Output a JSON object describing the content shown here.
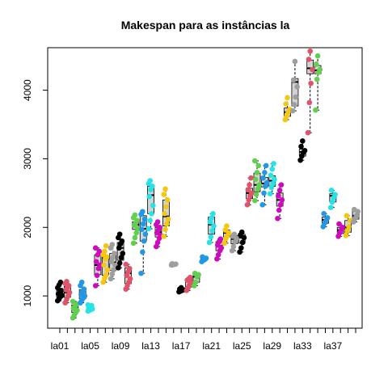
{
  "chart_data": {
    "type": "box",
    "title": "Makespan para as instâncias la",
    "xlabel": "",
    "ylabel": "",
    "ylim": [
      530,
      4620
    ],
    "y_ticks": [
      1000,
      2000,
      3000,
      4000
    ],
    "x_tick_labels": [
      "la01",
      "la05",
      "la09",
      "la13",
      "la17",
      "la21",
      "la25",
      "la29",
      "la33",
      "la37"
    ],
    "categories": [
      "la01",
      "la02",
      "la03",
      "la04",
      "la05",
      "la06",
      "la07",
      "la08",
      "la09",
      "la10",
      "la11",
      "la12",
      "la13",
      "la14",
      "la15",
      "la16",
      "la17",
      "la18",
      "la19",
      "la20",
      "la21",
      "la22",
      "la23",
      "la24",
      "la25",
      "la26",
      "la27",
      "la28",
      "la29",
      "la30",
      "la31",
      "la32",
      "la33",
      "la34",
      "la35",
      "la36",
      "la37",
      "la38",
      "la39",
      "la40"
    ],
    "palette": [
      "#000000",
      "#df536b",
      "#61d04f",
      "#2297e6",
      "#28e2e5",
      "#cd0bbc",
      "#f5c710",
      "#9e9e9e"
    ],
    "box_fill": "#d3d3d3",
    "boxes": [
      {
        "min": 930,
        "q1": 980,
        "median": 1030,
        "q3": 1080,
        "max": 1200,
        "points": [
          930,
          960,
          990,
          1010,
          1030,
          1050,
          1080,
          1120,
          1160,
          1200
        ]
      },
      {
        "min": 900,
        "q1": 980,
        "median": 1050,
        "q3": 1140,
        "max": 1210,
        "points": [
          900,
          950,
          1000,
          1050,
          1090,
          1120,
          1150,
          1180,
          1210
        ]
      },
      {
        "min": 680,
        "q1": 760,
        "median": 820,
        "q3": 870,
        "max": 920,
        "points": [
          680,
          720,
          760,
          790,
          820,
          850,
          880,
          920
        ]
      },
      {
        "min": 900,
        "q1": 960,
        "median": 1010,
        "q3": 1090,
        "max": 1200,
        "points": [
          900,
          940,
          970,
          1000,
          1020,
          1060,
          1100,
          1150,
          1200
        ]
      },
      {
        "min": 780,
        "q1": 790,
        "median": 810,
        "q3": 840,
        "max": 870,
        "points": [
          780,
          790,
          800,
          810,
          820,
          840,
          860,
          870
        ]
      },
      {
        "min": 1150,
        "q1": 1310,
        "median": 1450,
        "q3": 1600,
        "max": 1700,
        "points": [
          1150,
          1300,
          1400,
          1450,
          1500,
          1600,
          1650,
          1700
        ]
      },
      {
        "min": 1200,
        "q1": 1300,
        "median": 1560,
        "q3": 1590,
        "max": 1730,
        "points": [
          1200,
          1260,
          1300,
          1380,
          1450,
          1540,
          1570,
          1600,
          1650,
          1730
        ]
      },
      {
        "min": 1250,
        "q1": 1370,
        "median": 1490,
        "q3": 1620,
        "max": 1750,
        "points": [
          1250,
          1320,
          1380,
          1450,
          1500,
          1560,
          1620,
          1700,
          1750
        ]
      },
      {
        "min": 1410,
        "q1": 1520,
        "median": 1700,
        "q3": 1780,
        "max": 1900,
        "points": [
          1410,
          1480,
          1560,
          1620,
          1700,
          1760,
          1800,
          1850,
          1900
        ]
      },
      {
        "min": 1100,
        "q1": 1180,
        "median": 1330,
        "q3": 1410,
        "max": 1460,
        "points": [
          1100,
          1150,
          1200,
          1250,
          1300,
          1350,
          1400,
          1460
        ]
      },
      {
        "min": 1770,
        "q1": 1970,
        "median": 2040,
        "q3": 2080,
        "max": 2180,
        "points": [
          1770,
          1850,
          1920,
          1980,
          2030,
          2060,
          2100,
          2140,
          2180
        ]
      },
      {
        "min": 1330,
        "q1": 1800,
        "median": 1980,
        "q3": 2170,
        "max": 2230,
        "points": [
          1330,
          1640,
          1800,
          1900,
          1970,
          2050,
          2120,
          2190,
          2230
        ]
      },
      {
        "min": 1980,
        "q1": 2200,
        "median": 2470,
        "q3": 2600,
        "max": 2680,
        "points": [
          1980,
          2100,
          2200,
          2320,
          2450,
          2550,
          2600,
          2640,
          2680
        ]
      },
      {
        "min": 1720,
        "q1": 1860,
        "median": 1930,
        "q3": 2000,
        "max": 2080,
        "points": [
          1720,
          1780,
          1840,
          1880,
          1920,
          1960,
          2000,
          2040,
          2080
        ]
      },
      {
        "min": 1870,
        "q1": 2020,
        "median": 2160,
        "q3": 2400,
        "max": 2560,
        "points": [
          1870,
          1970,
          2050,
          2120,
          2200,
          2300,
          2400,
          2480,
          2560
        ]
      },
      {
        "min": 1450,
        "q1": 1455,
        "median": 1460,
        "q3": 1465,
        "max": 1470,
        "points": [
          1450,
          1455,
          1460,
          1465,
          1470
        ]
      },
      {
        "min": 1060,
        "q1": 1070,
        "median": 1080,
        "q3": 1100,
        "max": 1120,
        "points": [
          1060,
          1070,
          1080,
          1090,
          1100,
          1120
        ]
      },
      {
        "min": 1080,
        "q1": 1130,
        "median": 1210,
        "q3": 1250,
        "max": 1270,
        "points": [
          1080,
          1120,
          1160,
          1200,
          1230,
          1250,
          1270
        ]
      },
      {
        "min": 1150,
        "q1": 1200,
        "median": 1280,
        "q3": 1310,
        "max": 1330,
        "points": [
          1150,
          1200,
          1280,
          1310,
          1330
        ]
      },
      {
        "min": 1500,
        "q1": 1520,
        "median": 1530,
        "q3": 1550,
        "max": 1570,
        "points": [
          1500,
          1520,
          1530,
          1550,
          1570
        ]
      },
      {
        "min": 1780,
        "q1": 1900,
        "median": 2040,
        "q3": 2150,
        "max": 2200,
        "points": [
          1780,
          1860,
          1950,
          2020,
          2080,
          2140,
          2200
        ]
      },
      {
        "min": 1540,
        "q1": 1660,
        "median": 1730,
        "q3": 1790,
        "max": 1830,
        "points": [
          1540,
          1600,
          1660,
          1700,
          1740,
          1790,
          1830
        ]
      },
      {
        "min": 1770,
        "q1": 1860,
        "median": 1920,
        "q3": 1960,
        "max": 2020,
        "points": [
          1770,
          1840,
          1880,
          1920,
          1960,
          2020
        ]
      },
      {
        "min": 1660,
        "q1": 1760,
        "median": 1830,
        "q3": 1880,
        "max": 1900,
        "points": [
          1660,
          1720,
          1790,
          1840,
          1870,
          1900
        ]
      },
      {
        "min": 1640,
        "q1": 1770,
        "median": 1850,
        "q3": 1900,
        "max": 1930,
        "points": [
          1640,
          1700,
          1780,
          1850,
          1890,
          1930
        ]
      },
      {
        "min": 2330,
        "q1": 2420,
        "median": 2500,
        "q3": 2570,
        "max": 2720,
        "points": [
          2330,
          2400,
          2460,
          2500,
          2550,
          2620,
          2720
        ]
      },
      {
        "min": 2390,
        "q1": 2520,
        "median": 2620,
        "q3": 2790,
        "max": 2970,
        "points": [
          2390,
          2480,
          2560,
          2620,
          2700,
          2800,
          2900,
          2970
        ]
      },
      {
        "min": 2330,
        "q1": 2590,
        "median": 2640,
        "q3": 2730,
        "max": 2900,
        "points": [
          2330,
          2500,
          2600,
          2650,
          2720,
          2800,
          2900
        ]
      },
      {
        "min": 2490,
        "q1": 2600,
        "median": 2680,
        "q3": 2750,
        "max": 2930,
        "points": [
          2490,
          2580,
          2640,
          2700,
          2760,
          2850,
          2930
        ]
      },
      {
        "min": 2130,
        "q1": 2310,
        "median": 2400,
        "q3": 2500,
        "max": 2620,
        "points": [
          2130,
          2250,
          2330,
          2400,
          2460,
          2540,
          2620
        ]
      },
      {
        "min": 3570,
        "q1": 3620,
        "median": 3680,
        "q3": 3740,
        "max": 3890,
        "points": [
          3570,
          3620,
          3680,
          3720,
          3800,
          3890
        ]
      },
      {
        "min": 3700,
        "q1": 3770,
        "median": 4120,
        "q3": 4170,
        "max": 4420,
        "points": [
          3700,
          3790,
          3900,
          4050,
          4150,
          4420
        ]
      },
      {
        "min": 2980,
        "q1": 3040,
        "median": 3100,
        "q3": 3140,
        "max": 3260,
        "points": [
          2980,
          3040,
          3090,
          3120,
          3180,
          3260
        ]
      },
      {
        "min": 3380,
        "q1": 4240,
        "median": 4320,
        "q3": 4440,
        "max": 4570,
        "points": [
          3380,
          3820,
          4100,
          4300,
          4450,
          4570
        ]
      },
      {
        "min": 3710,
        "q1": 4240,
        "median": 4290,
        "q3": 4360,
        "max": 4500,
        "points": [
          3710,
          4160,
          4260,
          4300,
          4380,
          4500
        ]
      },
      {
        "min": 2010,
        "q1": 2060,
        "median": 2110,
        "q3": 2150,
        "max": 2200,
        "points": [
          2010,
          2060,
          2100,
          2140,
          2200
        ]
      },
      {
        "min": 2290,
        "q1": 2370,
        "median": 2460,
        "q3": 2490,
        "max": 2540,
        "points": [
          2290,
          2370,
          2430,
          2480,
          2540
        ]
      },
      {
        "min": 1870,
        "q1": 1910,
        "median": 1960,
        "q3": 2000,
        "max": 2050,
        "points": [
          1870,
          1920,
          1960,
          2000,
          2050
        ]
      },
      {
        "min": 1880,
        "q1": 1930,
        "median": 2000,
        "q3": 2100,
        "max": 2170,
        "points": [
          1880,
          1950,
          2010,
          2100,
          2170
        ]
      },
      {
        "min": 2080,
        "q1": 2120,
        "median": 2170,
        "q3": 2230,
        "max": 2260,
        "points": [
          2080,
          2130,
          2170,
          2230,
          2260
        ]
      }
    ]
  }
}
